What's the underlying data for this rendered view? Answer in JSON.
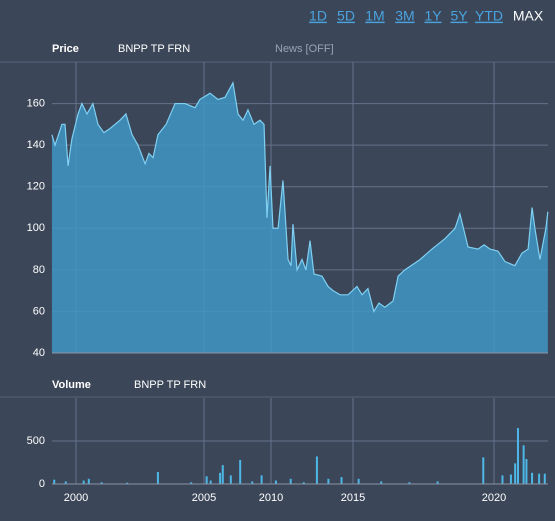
{
  "toolbar": {
    "ranges": [
      "1D",
      "5D",
      "1M",
      "3M",
      "1Y",
      "5Y",
      "YTD",
      "MAX"
    ],
    "active": "MAX"
  },
  "chart_data": [
    {
      "type": "area",
      "title": "Price",
      "subtitle": "BNPP TP FRN",
      "annotation": "News [OFF]",
      "color": "#3f97c4",
      "line_color": "#7fd0f2",
      "grid": true,
      "x": [
        1999.06,
        1999.18,
        1999.45,
        1999.57,
        1999.69,
        1999.84,
        2000.08,
        2000.23,
        2000.43,
        2000.66,
        2000.86,
        2001.09,
        2001.33,
        2001.72,
        2001.95,
        2002.19,
        2002.42,
        2002.7,
        2002.85,
        2003.01,
        2003.2,
        2003.52,
        2003.87,
        2004.26,
        2004.65,
        2004.84,
        2005.45,
        2006.04,
        2006.57,
        2007.16,
        2007.54,
        2007.91,
        2008.28,
        2008.73,
        2009.18,
        2009.48,
        2009.7,
        2009.93,
        2010.12,
        2010.43,
        2010.73,
        2011.04,
        2011.22,
        2011.34,
        2011.59,
        2011.89,
        2012.13,
        2012.38,
        2012.62,
        2013.11,
        2013.48,
        2013.78,
        2014.21,
        2014.7,
        2015.14,
        2015.32,
        2015.53,
        2015.74,
        2015.92,
        2016.13,
        2016.42,
        2016.6,
        2016.84,
        2017.38,
        2017.8,
        2018.26,
        2018.62,
        2018.79,
        2019.08,
        2019.43,
        2019.65,
        2019.86,
        2020.14,
        2020.39,
        2020.74,
        2020.99,
        2021.21,
        2021.35,
        2021.45,
        2021.63,
        2021.84,
        2021.91
      ],
      "values": [
        145,
        140,
        150,
        150,
        130,
        143,
        155,
        160,
        155,
        160,
        150,
        146,
        148,
        152,
        155,
        145,
        140,
        131,
        136,
        134,
        145,
        150,
        160,
        160,
        158,
        162,
        165,
        162,
        163,
        170,
        155,
        152,
        157,
        150,
        152,
        150,
        105,
        130,
        100,
        100,
        123,
        85,
        82,
        102,
        80,
        85,
        80,
        94,
        78,
        77,
        72,
        70,
        68,
        68,
        72,
        68,
        71,
        60,
        64,
        62,
        65,
        77,
        80,
        85,
        90,
        95,
        100,
        107,
        91,
        90,
        92,
        90,
        89,
        84,
        82,
        88,
        90,
        110,
        100,
        85,
        100,
        108
      ],
      "xlim": [
        1999.06,
        2021.91
      ],
      "xticks": [
        2000,
        2005,
        2010,
        2015,
        2020
      ],
      "ylim": [
        40,
        180
      ],
      "yticks": [
        40,
        60,
        80,
        100,
        120,
        140,
        160
      ]
    },
    {
      "type": "bar",
      "title": "Volume",
      "subtitle": "BNPP TP FRN",
      "color": "#4db8e8",
      "grid": true,
      "x": [
        1999.15,
        1999.6,
        2000.3,
        2000.5,
        2001.0,
        2002.0,
        2003.2,
        2004.5,
        2005.2,
        2005.5,
        2006.2,
        2006.4,
        2007.0,
        2007.7,
        2008.6,
        2009.3,
        2010.3,
        2011.2,
        2012.0,
        2012.8,
        2013.5,
        2014.3,
        2015.2,
        2016.0,
        2017.0,
        2018.0,
        2019.62,
        2020.3,
        2020.6,
        2020.75,
        2020.85,
        2021.05,
        2021.15,
        2021.35,
        2021.6,
        2021.8
      ],
      "values": [
        50,
        30,
        40,
        60,
        20,
        15,
        140,
        20,
        90,
        40,
        130,
        220,
        100,
        280,
        30,
        100,
        40,
        60,
        20,
        320,
        60,
        80,
        60,
        30,
        20,
        30,
        310,
        100,
        110,
        240,
        650,
        450,
        290,
        130,
        120,
        120
      ],
      "xlim": [
        1999.06,
        2021.91
      ],
      "xticks": [
        2000,
        2005,
        2010,
        2015,
        2020
      ],
      "ylim": [
        0,
        1000
      ],
      "yticks": [
        0,
        500
      ]
    }
  ]
}
